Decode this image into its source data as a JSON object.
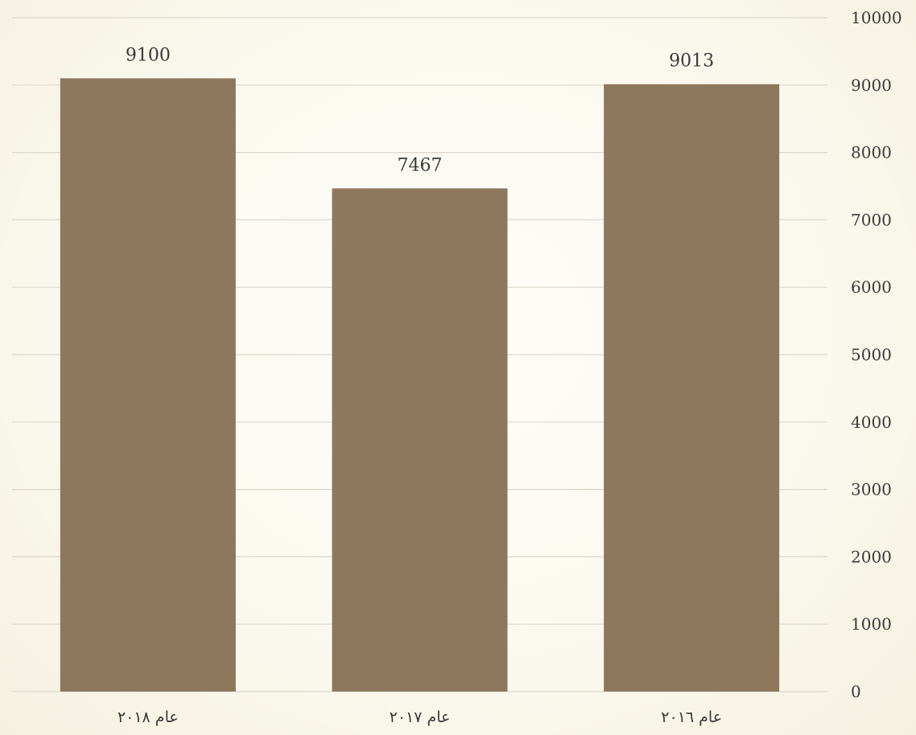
{
  "chart_data": {
    "type": "bar",
    "categories": [
      "عام ٢٠١٨",
      "عام ٢٠١٧",
      "عام ٢٠١٦"
    ],
    "values": [
      9100,
      7467,
      9013
    ],
    "data_labels": [
      "9100",
      "7467",
      "9013"
    ],
    "ylim": [
      0,
      10000
    ],
    "y_ticks": [
      0,
      1000,
      2000,
      3000,
      4000,
      5000,
      6000,
      7000,
      8000,
      9000,
      10000
    ],
    "y_tick_labels": [
      "0",
      "1000",
      "2000",
      "3000",
      "4000",
      "5000",
      "6000",
      "7000",
      "8000",
      "9000",
      "10000"
    ],
    "y_axis_side": "right",
    "grid": true,
    "bar_color": "#8d785e",
    "legend": "none"
  }
}
